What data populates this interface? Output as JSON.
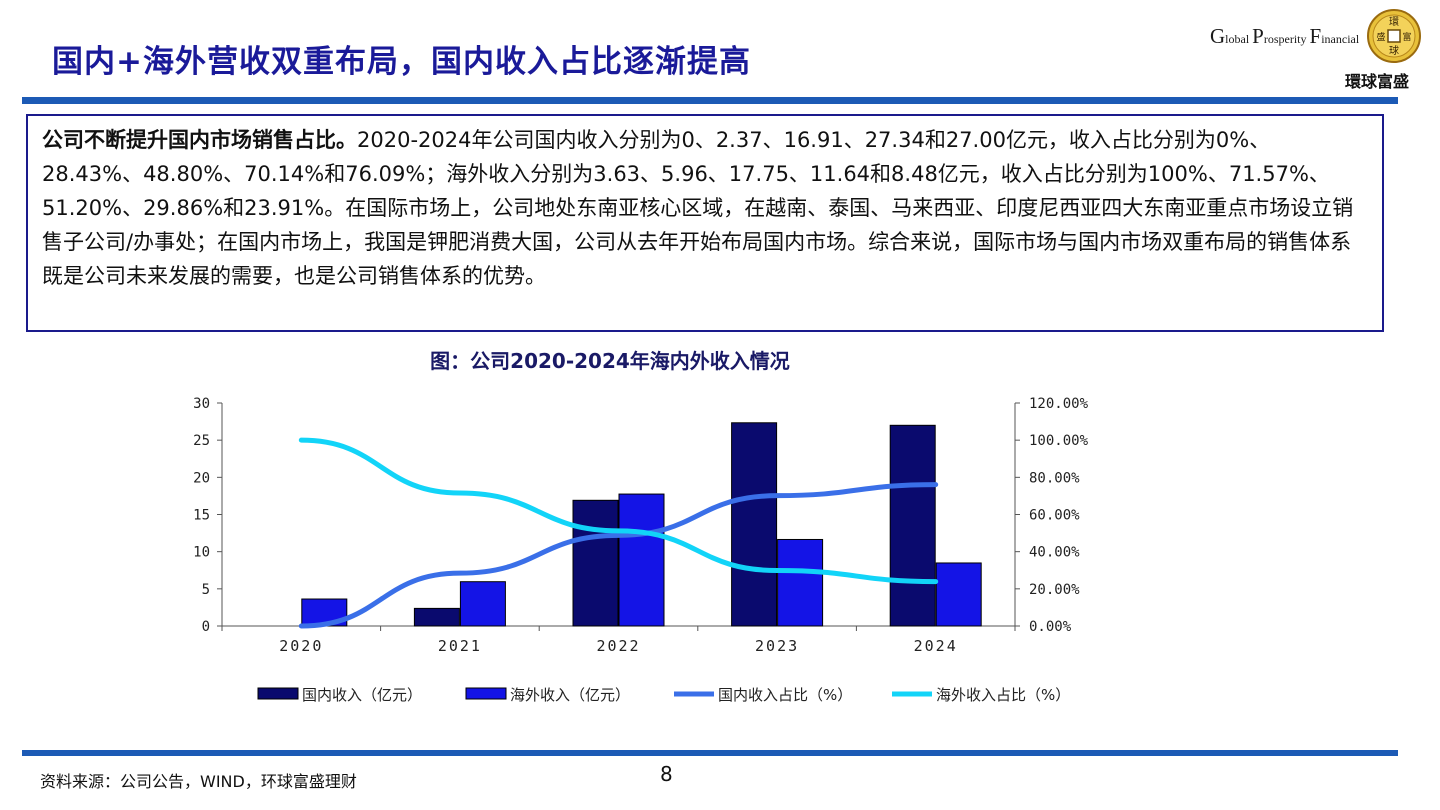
{
  "slide": {
    "title": "国内+海外营收双重布局，国内收入占比逐渐提高",
    "page_number": "8",
    "source": "资料来源：公司公告，WIND，环球富盛理财"
  },
  "logo": {
    "en_line": [
      "Global",
      "Prosperity",
      "Financial"
    ],
    "cn_name": "環球富盛",
    "coin_chars": [
      "環",
      "富",
      "球",
      "盛"
    ]
  },
  "textbox": {
    "lead": "公司不断提升国内市场销售占比。",
    "body": "2020-2024年公司国内收入分别为0、2.37、16.91、27.34和27.00亿元，收入占比分别为0%、28.43%、48.80%、70.14%和76.09%；海外收入分别为3.63、5.96、17.75、11.64和8.48亿元，收入占比分别为100%、71.57%、51.20%、29.86%和23.91%。在国际市场上，公司地处东南亚核心区域，在越南、泰国、马来西亚、印度尼西亚四大东南亚重点市场设立销售子公司/办事处；在国内市场上，我国是钾肥消费大国，公司从去年开始布局国内市场。综合来说，国际市场与国内市场双重布局的销售体系既是公司未来发展的需要，也是公司销售体系的优势。"
  },
  "chart_data": {
    "type": "bar",
    "title": "图：公司2020-2024年海内外收入情况",
    "categories": [
      "2020",
      "2021",
      "2022",
      "2023",
      "2024"
    ],
    "y_left": {
      "min": 0,
      "max": 30,
      "ticks": [
        "0",
        "5",
        "10",
        "15",
        "20",
        "25",
        "30"
      ]
    },
    "y_right": {
      "min": 0,
      "max": 1.2,
      "ticks": [
        "0.00%",
        "20.00%",
        "40.00%",
        "60.00%",
        "80.00%",
        "100.00%",
        "120.00%"
      ]
    },
    "series": [
      {
        "name": "国内收入（亿元）",
        "kind": "bar",
        "axis": "left",
        "color": "#0a0a6e",
        "values": [
          0,
          2.37,
          16.91,
          27.34,
          27.0
        ]
      },
      {
        "name": "海外收入（亿元）",
        "kind": "bar",
        "axis": "left",
        "color": "#1414e6",
        "values": [
          3.63,
          5.96,
          17.75,
          11.64,
          8.48
        ]
      },
      {
        "name": "国内收入占比（%）",
        "kind": "line",
        "axis": "right",
        "color": "#3a6fe8",
        "values": [
          0.0,
          0.2843,
          0.488,
          0.7014,
          0.7609
        ]
      },
      {
        "name": "海外收入占比（%）",
        "kind": "line",
        "axis": "right",
        "color": "#12d4f8",
        "values": [
          1.0,
          0.7157,
          0.512,
          0.2986,
          0.2391
        ]
      }
    ],
    "legend_position": "bottom",
    "grid": false
  }
}
